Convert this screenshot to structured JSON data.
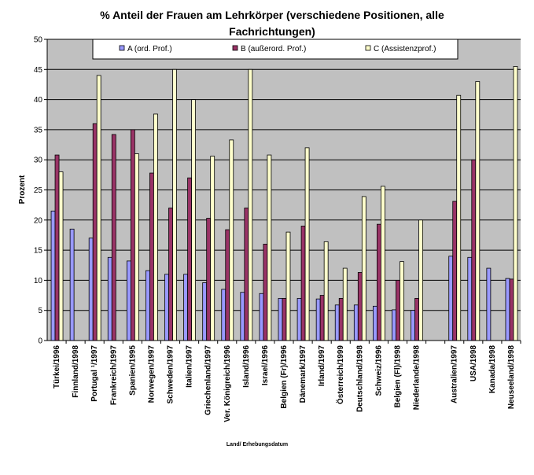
{
  "chart_data": {
    "type": "bar",
    "title": "% Anteil der Frauen am Lehrkörper (verschiedene Positionen, alle Fachrichtungen)",
    "title_lines": [
      "% Anteil der Frauen am Lehrkörper (verschiedene Positionen, alle",
      "Fachrichtungen)"
    ],
    "xlabel": "Land/ Erhebungsdatum",
    "ylabel": "Prozent",
    "ylim": [
      0,
      50
    ],
    "yticks": [
      0,
      5,
      10,
      15,
      20,
      25,
      30,
      35,
      40,
      45,
      50
    ],
    "grid": true,
    "legend_position": "top",
    "categories": [
      "Türkei/1996",
      "Finnland/1998",
      "Portugal ¹/1997",
      "Frankreich/1997",
      "Spanien/1995",
      "Norwegen/1997",
      "Schweden/1997",
      "Italien/1997",
      "Griechenland/1997",
      "Ver. Königreich/1996",
      "Island/1996",
      "Israel/1996",
      "Belgien (Fr)/1996",
      "Dänemark/1997",
      "Irland/1997",
      "Österreich/1999",
      "Deutschland/1998",
      "Schweiz/1996",
      "Belgien (Fl)/1998",
      "Niederlande/1998",
      "",
      "Australien/1997",
      "USA/1998",
      "Kanada/1998",
      "Neuseeland/1998"
    ],
    "series": [
      {
        "name": "A (ord. Prof.)",
        "color": "#9999ff",
        "values": [
          21.5,
          18.5,
          17,
          13.8,
          13.2,
          11.6,
          11,
          11,
          9.6,
          8.5,
          8,
          7.8,
          7,
          7,
          6.9,
          5.9,
          5.9,
          5.7,
          5.1,
          5,
          null,
          14,
          13.8,
          12,
          10.3
        ]
      },
      {
        "name": "B (außerord. Prof.)",
        "color": "#993366",
        "values": [
          30.8,
          null,
          36,
          34.2,
          35,
          27.8,
          22,
          27,
          20.3,
          18.4,
          22,
          16,
          7,
          19,
          7.5,
          7,
          11.3,
          19.3,
          10,
          7,
          null,
          23.1,
          30,
          null,
          10.2
        ]
      },
      {
        "name": "C (Assistenzprof.)",
        "color": "#ffffcc",
        "values": [
          28,
          null,
          44,
          null,
          31,
          37.6,
          45,
          40,
          30.6,
          33.3,
          45,
          30.8,
          18,
          32,
          16.4,
          12,
          23.9,
          25.6,
          13.1,
          20,
          null,
          40.7,
          43,
          null,
          45.5
        ]
      }
    ]
  }
}
